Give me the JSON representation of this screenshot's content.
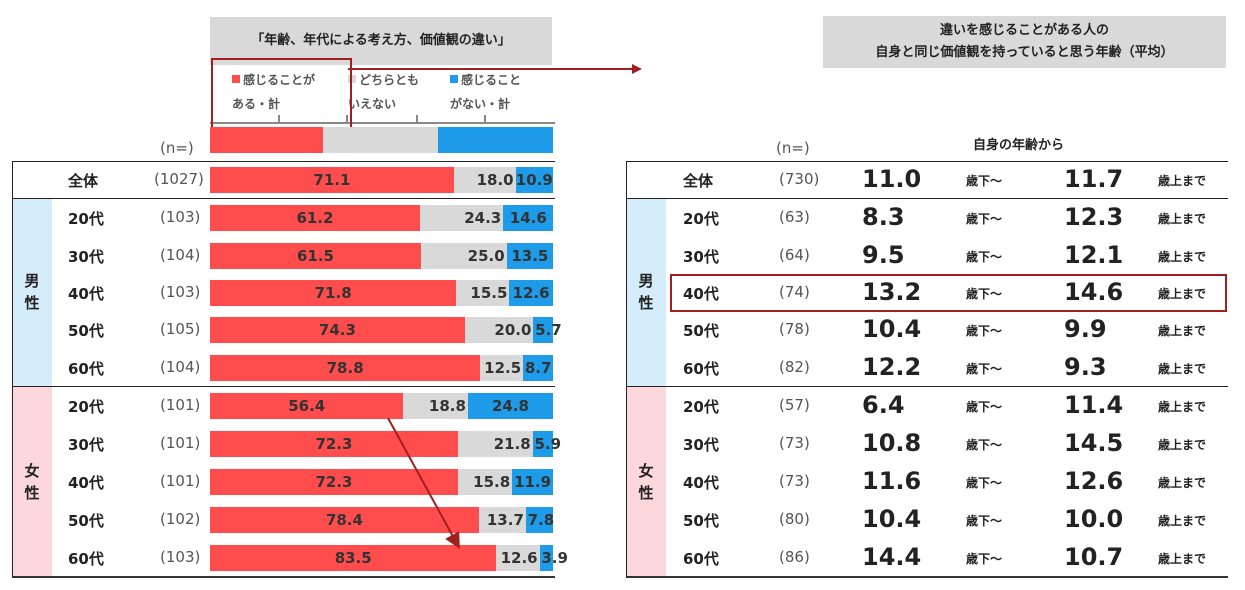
{
  "left": {
    "title": "「年齢、年代による考え方、価値観の違い」",
    "legend": [
      {
        "line1": "感じることが",
        "line2": "ある・計",
        "color": "#ff4d4d"
      },
      {
        "line1": "どちらとも",
        "line2": "いえない",
        "color": "#d9d9d9"
      },
      {
        "line1": "感じること",
        "line2": "がない・計",
        "color": "#1e9be9"
      }
    ],
    "n_header": "(n=)"
  },
  "right": {
    "title_line1": "違いを感じることがある人の",
    "title_line2": "自身と同じ価値観を持っていると思う年齢（平均）",
    "n_header": "(n=)",
    "col_header": "自身の年齢から",
    "below_label": "歳下～",
    "above_label": "歳上まで"
  },
  "groups": {
    "male": "男性",
    "female": "女性"
  },
  "chart_data": {
    "type": "bar",
    "stacked": true,
    "orientation": "horizontal",
    "title": "「年齢、年代による考え方、価値観の違い」",
    "categories": [
      "全体",
      "20代",
      "30代",
      "40代",
      "50代",
      "60代",
      "20代",
      "30代",
      "40代",
      "50代",
      "60代"
    ],
    "category_groups": [
      "",
      "男性",
      "男性",
      "男性",
      "男性",
      "男性",
      "女性",
      "女性",
      "女性",
      "女性",
      "女性"
    ],
    "n": [
      "(1027)",
      "(103)",
      "(104)",
      "(103)",
      "(105)",
      "(104)",
      "(101)",
      "(101)",
      "(101)",
      "(102)",
      "(103)"
    ],
    "series": [
      {
        "name": "感じることがある・計",
        "color": "#ff4d4d",
        "values": [
          71.1,
          61.2,
          61.5,
          71.8,
          74.3,
          78.8,
          56.4,
          72.3,
          72.3,
          78.4,
          83.5
        ]
      },
      {
        "name": "どちらともいえない",
        "color": "#d9d9d9",
        "values": [
          18.0,
          24.3,
          25.0,
          15.5,
          20.0,
          12.5,
          18.8,
          21.8,
          15.8,
          13.7,
          12.6
        ]
      },
      {
        "name": "感じることがない・計",
        "color": "#1e9be9",
        "values": [
          10.9,
          14.6,
          13.5,
          12.6,
          5.7,
          8.7,
          24.8,
          5.9,
          11.9,
          7.8,
          3.9
        ]
      }
    ],
    "xlim": [
      0,
      100
    ]
  },
  "table": {
    "rows": [
      {
        "label": "全体",
        "n": "(730)",
        "below": "11.0",
        "above": "11.7"
      },
      {
        "label": "20代",
        "n": "(63)",
        "below": "8.3",
        "above": "12.3"
      },
      {
        "label": "30代",
        "n": "(64)",
        "below": "9.5",
        "above": "12.1"
      },
      {
        "label": "40代",
        "n": "(74)",
        "below": "13.2",
        "above": "14.6"
      },
      {
        "label": "50代",
        "n": "(78)",
        "below": "10.4",
        "above": "9.9"
      },
      {
        "label": "60代",
        "n": "(82)",
        "below": "12.2",
        "above": "9.3"
      },
      {
        "label": "20代",
        "n": "(57)",
        "below": "6.4",
        "above": "11.4"
      },
      {
        "label": "30代",
        "n": "(73)",
        "below": "10.8",
        "above": "14.5"
      },
      {
        "label": "40代",
        "n": "(73)",
        "below": "11.6",
        "above": "12.6"
      },
      {
        "label": "50代",
        "n": "(80)",
        "below": "10.4",
        "above": "10.0"
      },
      {
        "label": "60代",
        "n": "(86)",
        "below": "14.4",
        "above": "10.7"
      }
    ]
  },
  "colors": {
    "male_bg": "#d5edfa",
    "female_bg": "#fcd7db",
    "highlight": "#a01f1f"
  }
}
